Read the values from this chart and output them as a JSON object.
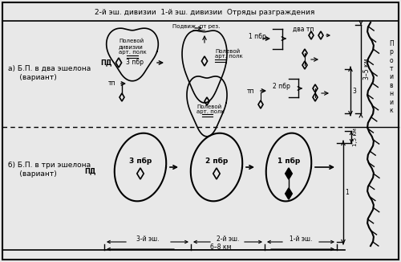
{
  "title": "2-й эш. дивизии  1-й эш. дивизии  Отряды разграждения",
  "bg_color": "#e8e8e8",
  "border_color": "#000000",
  "text_color": "#000000",
  "label_a": "а) Б.П. в два эшелона\n     (вариант)",
  "label_b": "б) Б.П. в три эшелона\n     (вариант)",
  "dim_label1": "3–5 км",
  "dim_label2": "3",
  "dim_label3": "1,5 км",
  "dim_label4": "1",
  "bottom_label1": "3-й эш.",
  "bottom_label2": "2-й эш.",
  "bottom_label3": "1-й эш.",
  "bottom_label4": "6–8 км"
}
